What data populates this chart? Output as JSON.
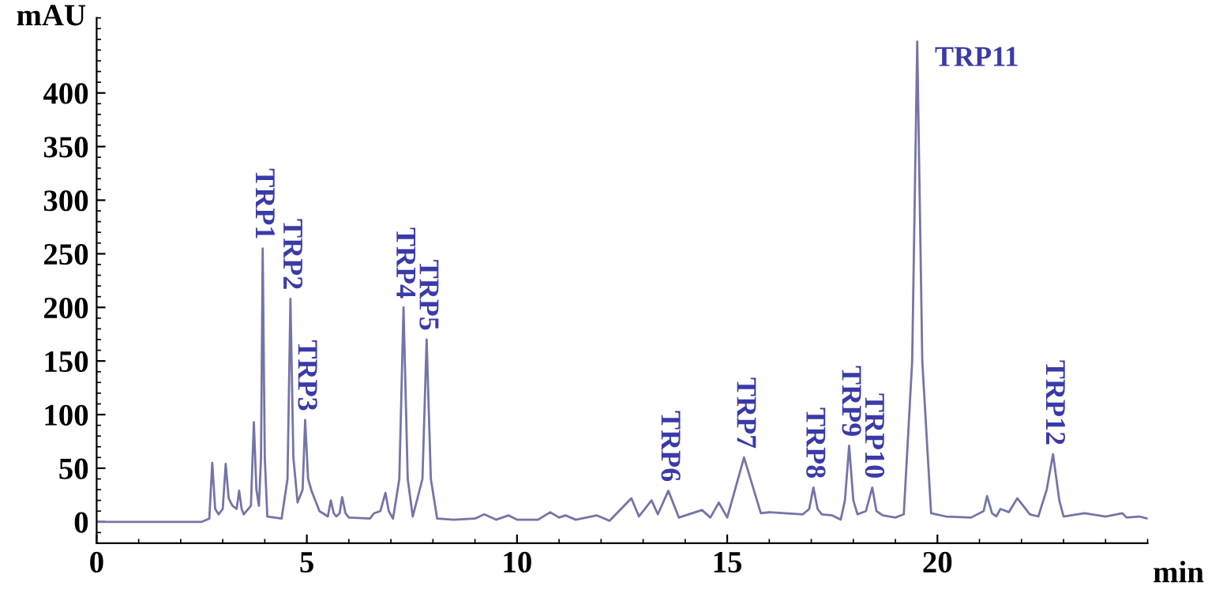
{
  "chart_data": {
    "type": "line",
    "xlabel": "min",
    "ylabel": "mAU",
    "xlim": [
      0,
      25
    ],
    "xticks": [
      0,
      5,
      10,
      15,
      20
    ],
    "ylim": [
      -20,
      470
    ],
    "yticks": [
      0,
      50,
      100,
      150,
      200,
      250,
      300,
      350,
      400
    ],
    "grid": false,
    "legend": false,
    "marker": "none",
    "line_style": "solid",
    "series": [
      {
        "color": "#7474a8",
        "x": [
          0,
          2.5,
          2.68,
          2.75,
          2.82,
          2.9,
          3.0,
          3.07,
          3.14,
          3.23,
          3.33,
          3.39,
          3.45,
          3.5,
          3.67,
          3.74,
          3.8,
          3.86,
          3.91,
          3.95,
          4.0,
          4.06,
          4.4,
          4.54,
          4.61,
          4.68,
          4.78,
          4.9,
          4.96,
          5.03,
          5.12,
          5.3,
          5.5,
          5.57,
          5.64,
          5.7,
          5.78,
          5.84,
          5.92,
          6.0,
          6.5,
          6.6,
          6.75,
          6.87,
          6.95,
          7.05,
          7.2,
          7.3,
          7.4,
          7.52,
          7.75,
          7.85,
          7.95,
          8.1,
          8.5,
          9.0,
          9.22,
          9.5,
          9.8,
          10.0,
          10.5,
          10.79,
          11.0,
          11.15,
          11.4,
          11.9,
          12.2,
          12.72,
          12.9,
          13.2,
          13.35,
          13.6,
          13.85,
          14.4,
          14.6,
          14.8,
          15.0,
          15.4,
          15.8,
          16.0,
          16.8,
          16.95,
          17.05,
          17.15,
          17.25,
          17.5,
          17.7,
          17.8,
          17.9,
          18.0,
          18.1,
          18.3,
          18.45,
          18.55,
          18.7,
          19.0,
          19.2,
          19.4,
          19.52,
          19.64,
          19.85,
          20.2,
          20.8,
          21.1,
          21.18,
          21.3,
          21.4,
          21.5,
          21.7,
          21.9,
          22.2,
          22.4,
          22.6,
          22.75,
          22.9,
          23.0,
          23.5,
          24.0,
          24.4,
          24.5,
          24.8,
          25.0
        ],
        "values": [
          0,
          0,
          3,
          55,
          12,
          7,
          12,
          54,
          22,
          15,
          12,
          29,
          12,
          7,
          15,
          93,
          30,
          15,
          60,
          255,
          60,
          5,
          3,
          40,
          208,
          60,
          18,
          30,
          95,
          40,
          28,
          10,
          5,
          20,
          8,
          5,
          8,
          23,
          8,
          4,
          3,
          8,
          10,
          27,
          10,
          3,
          40,
          200,
          40,
          5,
          40,
          170,
          40,
          3,
          2,
          3,
          7,
          2,
          6,
          2,
          2,
          9,
          4,
          6,
          2,
          6,
          1,
          22,
          5,
          20,
          7,
          29,
          4,
          11,
          4,
          18,
          4,
          60,
          8,
          9,
          7,
          12,
          32,
          12,
          7,
          6,
          2,
          20,
          71,
          20,
          7,
          10,
          32,
          10,
          6,
          4,
          7,
          150,
          448,
          150,
          8,
          5,
          4,
          10,
          24,
          8,
          5,
          12,
          9,
          22,
          7,
          5,
          30,
          63,
          20,
          5,
          8,
          5,
          8,
          4,
          5,
          3
        ]
      }
    ],
    "annotations": [
      {
        "text": "TRP1",
        "x": 3.95,
        "y": 255
      },
      {
        "text": "TRP2",
        "x": 4.61,
        "y": 208
      },
      {
        "text": "TRP3",
        "x": 4.96,
        "y": 95
      },
      {
        "text": "TRP4",
        "x": 7.3,
        "y": 200
      },
      {
        "text": "TRP5",
        "x": 7.85,
        "y": 170
      },
      {
        "text": "TRP6",
        "x": 13.6,
        "y": 29
      },
      {
        "text": "TRP7",
        "x": 15.4,
        "y": 60
      },
      {
        "text": "TRP8",
        "x": 17.05,
        "y": 32
      },
      {
        "text": "TRP9",
        "x": 17.9,
        "y": 71
      },
      {
        "text": "TRP10",
        "x": 18.45,
        "y": 32
      },
      {
        "text": "TRP11",
        "x": 19.52,
        "y": 448
      },
      {
        "text": "TRP12",
        "x": 22.75,
        "y": 63
      }
    ]
  }
}
